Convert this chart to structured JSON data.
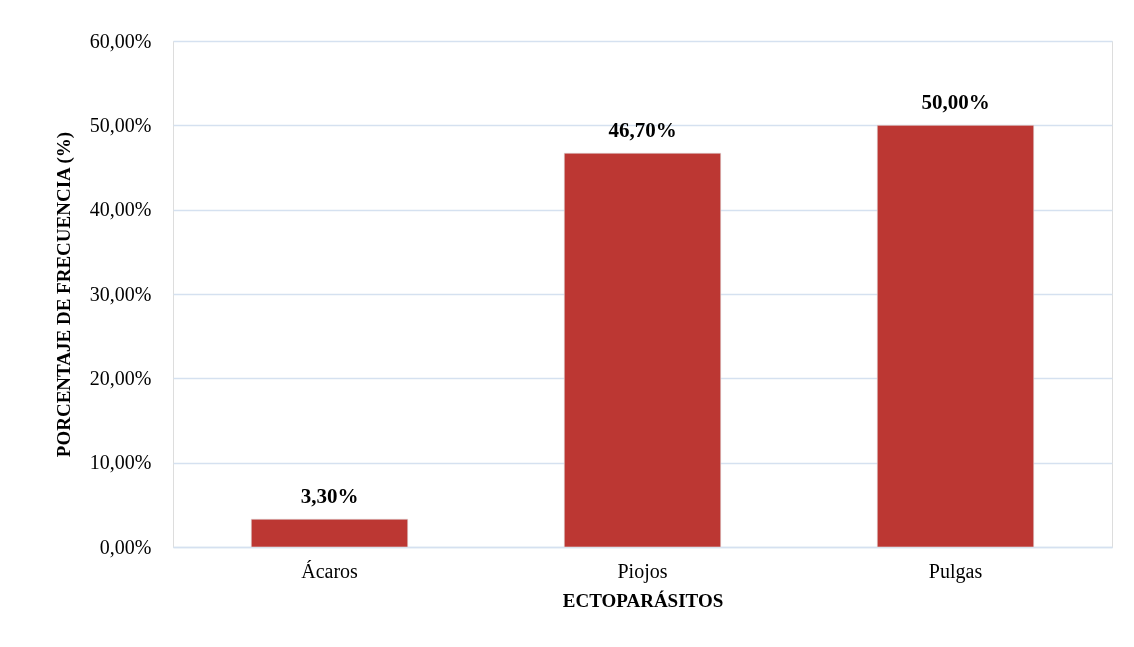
{
  "chart_data": {
    "type": "bar",
    "xlabel": "ECTOPARÁSITOS",
    "ylabel": "PORCENTAJE DE FRECUENCIA (%)",
    "categories": [
      "Ácaros",
      "Piojos",
      "Pulgas"
    ],
    "values": [
      3.3,
      46.7,
      50.0
    ],
    "color": "#bc3733",
    "value_labels": [
      "3,30%",
      "46,70%",
      "50,00%"
    ],
    "ylim": [
      0,
      60
    ],
    "yticks": [
      {
        "value": 0,
        "label": "0,00%"
      },
      {
        "value": 10,
        "label": "10,00%"
      },
      {
        "value": 20,
        "label": "20,00%"
      },
      {
        "value": 30,
        "label": "30,00%"
      },
      {
        "value": 40,
        "label": "40,00%"
      },
      {
        "value": 50,
        "label": "50,00%"
      },
      {
        "value": 60,
        "label": "60,00%"
      }
    ],
    "grid": "y"
  }
}
